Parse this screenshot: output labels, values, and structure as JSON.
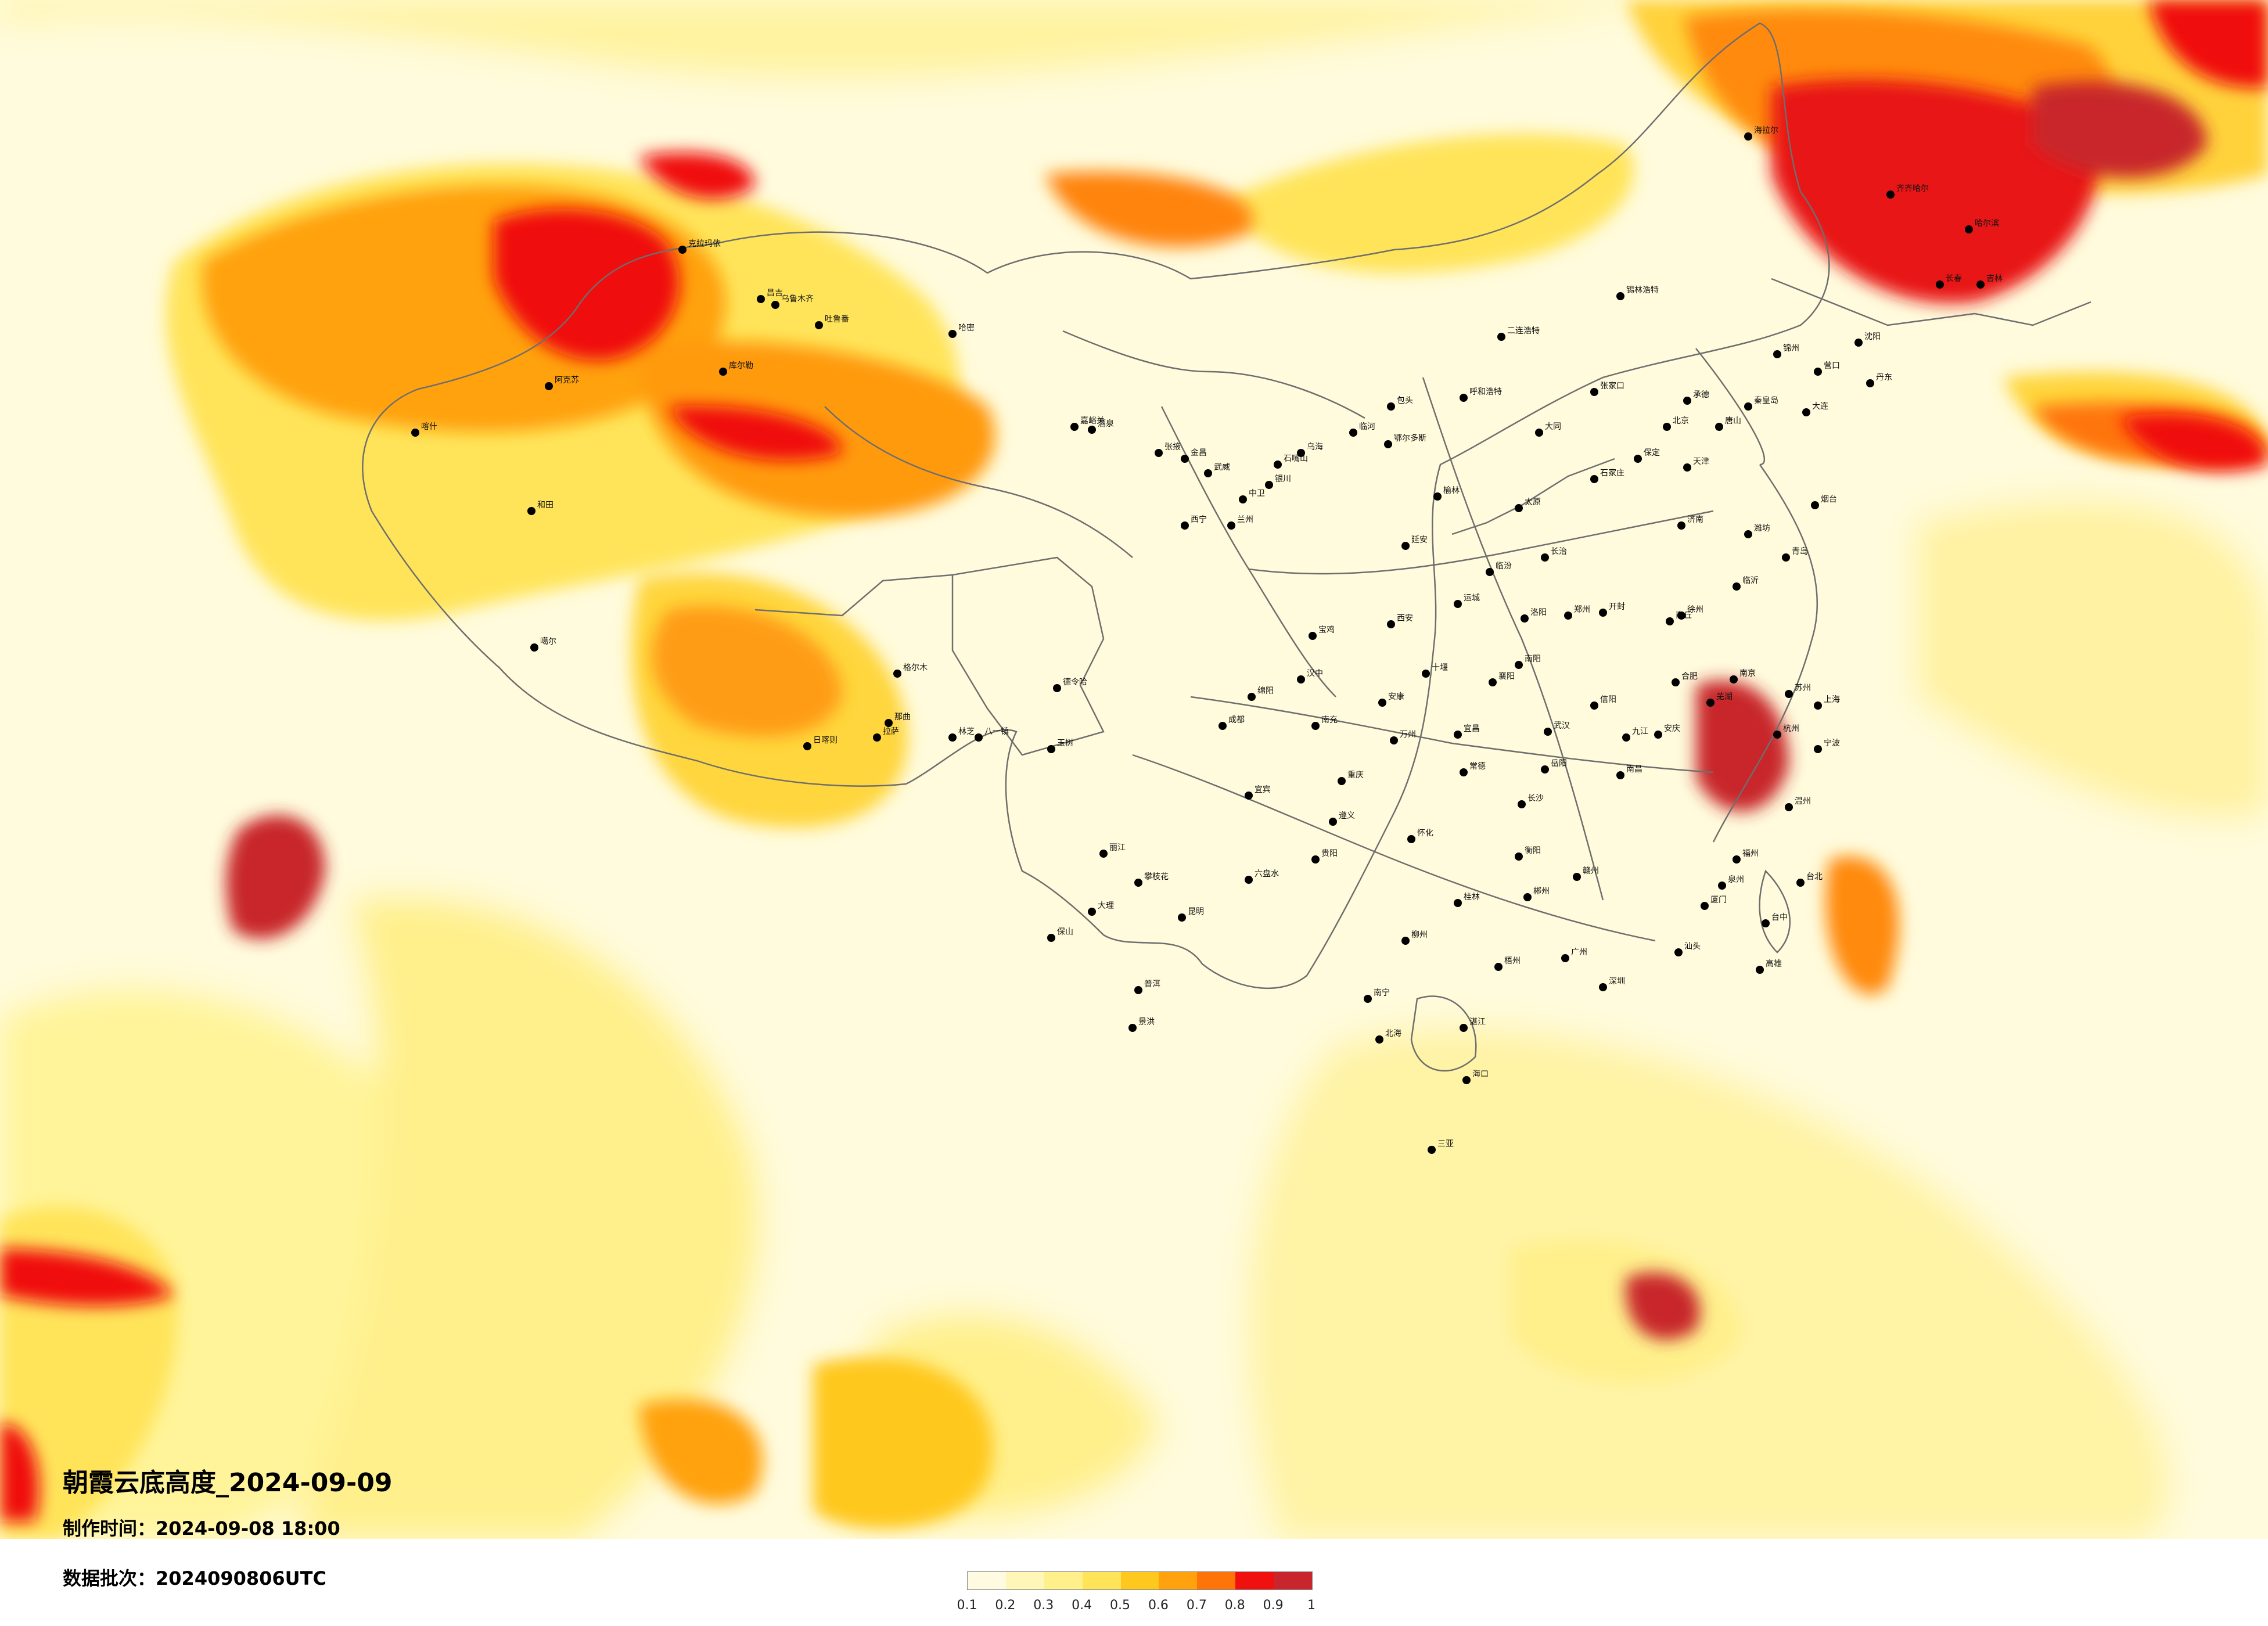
{
  "title": "朝霞云底高度_2024-09-09",
  "made_time_label": "制作时间：",
  "made_time_value": "2024-09-08 18:00",
  "batch_label": "数据批次：",
  "batch_value": "2024090806UTC",
  "legend": {
    "ticks": [
      "0.1",
      "0.2",
      "0.3",
      "0.4",
      "0.5",
      "0.6",
      "0.7",
      "0.8",
      "0.9",
      "1"
    ],
    "colors": [
      "#fffbe0",
      "#fff6b8",
      "#fff08c",
      "#ffe45a",
      "#ffc81e",
      "#ffa20e",
      "#ff7408",
      "#f01010",
      "#c8252c"
    ]
  },
  "cities": [
    "克拉玛依",
    "昌吉",
    "乌鲁木齐",
    "吐鲁番",
    "哈密",
    "库尔勒",
    "阿克苏",
    "喀什",
    "和田",
    "噶尔",
    "那曲",
    "日喀则",
    "拉萨",
    "林芝",
    "八一镇",
    "格尔木",
    "德令哈",
    "玉树",
    "嘉峪关",
    "酒泉",
    "张掖",
    "武威",
    "金昌",
    "兰州",
    "西宁",
    "银川",
    "中卫",
    "石嘴山",
    "呼和浩特",
    "包头",
    "鄂尔多斯",
    "乌海",
    "临河",
    "二连浩特",
    "锡林浩特",
    "海拉尔",
    "齐齐哈尔",
    "哈尔滨",
    "长春",
    "吉林",
    "沈阳",
    "大连",
    "丹东",
    "营口",
    "锦州",
    "北京",
    "天津",
    "石家庄",
    "保定",
    "唐山",
    "秦皇岛",
    "张家口",
    "承德",
    "太原",
    "大同",
    "长治",
    "临汾",
    "运城",
    "西安",
    "宝鸡",
    "延安",
    "榆林",
    "汉中",
    "安康",
    "郑州",
    "洛阳",
    "开封",
    "商丘",
    "南阳",
    "信阳",
    "济南",
    "青岛",
    "烟台",
    "潍坊",
    "临沂",
    "徐州",
    "南京",
    "苏州",
    "上海",
    "杭州",
    "宁波",
    "温州",
    "合肥",
    "芜湖",
    "安庆",
    "南昌",
    "九江",
    "赣州",
    "武汉",
    "宜昌",
    "襄阳",
    "十堰",
    "长沙",
    "岳阳",
    "常德",
    "怀化",
    "衡阳",
    "郴州",
    "成都",
    "绵阳",
    "南充",
    "宜宾",
    "攀枝花",
    "重庆",
    "万州",
    "贵阳",
    "遵义",
    "六盘水",
    "昆明",
    "大理",
    "丽江",
    "保山",
    "普洱",
    "景洪",
    "南宁",
    "桂林",
    "柳州",
    "梧州",
    "北海",
    "广州",
    "深圳",
    "汕头",
    "湛江",
    "海口",
    "三亚",
    "福州",
    "厦门",
    "泉州",
    "台北",
    "台中",
    "高雄"
  ]
}
